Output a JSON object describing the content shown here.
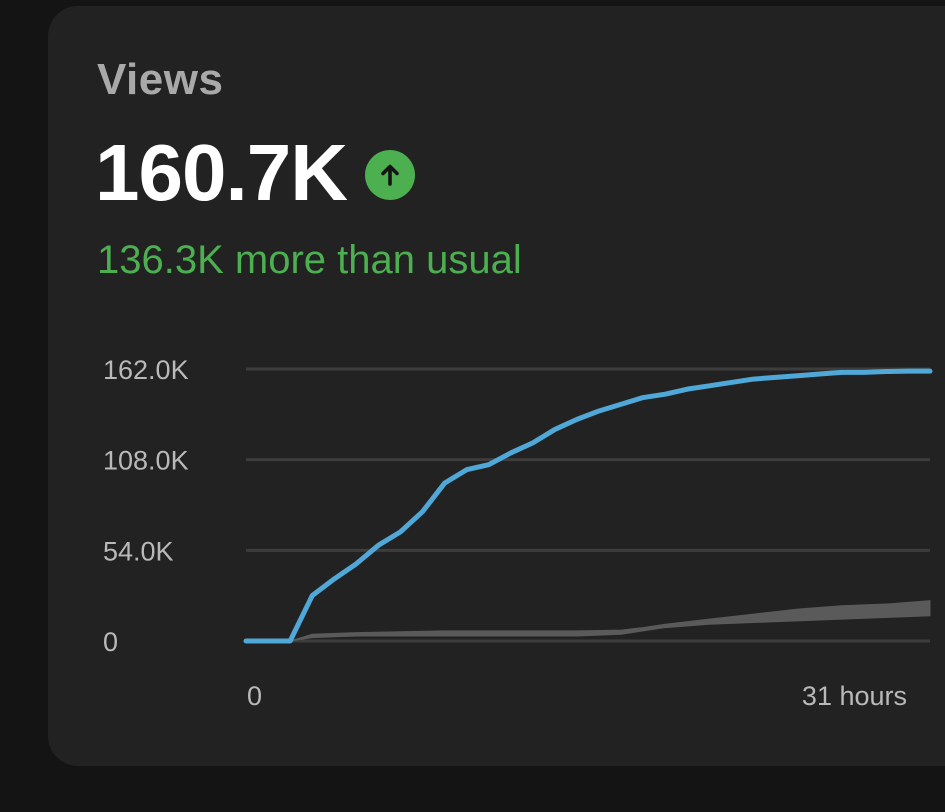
{
  "card": {
    "title": "Views",
    "value": "160.7K",
    "trend_icon": "arrow-up-icon",
    "comparison": "136.3K more than usual",
    "colors": {
      "current_line": "#4fa8d8",
      "typical_band": "#5a5a5a",
      "positive": "#4caf50"
    }
  },
  "chart_data": {
    "type": "line",
    "xlim": [
      0,
      31
    ],
    "ylim": [
      0,
      162000
    ],
    "y_ticks": [
      "162.0K",
      "108.0K",
      "54.0K",
      "0"
    ],
    "y_tick_values": [
      162000,
      108000,
      54000,
      0
    ],
    "x_ticks": [
      "0",
      "31 hours"
    ],
    "x_tick_values": [
      0,
      31
    ],
    "grid": true,
    "series": [
      {
        "role": "current",
        "x": [
          0,
          1,
          2,
          3,
          4,
          5,
          6,
          7,
          8,
          9,
          10,
          11,
          12,
          13,
          14,
          15,
          16,
          17,
          18,
          19,
          20,
          21,
          22,
          23,
          24,
          25,
          26,
          27,
          28,
          29,
          30,
          31
        ],
        "values": [
          0,
          0,
          0,
          27000,
          37000,
          46000,
          57000,
          65000,
          77000,
          94000,
          102000,
          105000,
          112000,
          118000,
          126000,
          132000,
          137000,
          141000,
          145000,
          147000,
          150000,
          152000,
          154000,
          156000,
          157000,
          158000,
          159000,
          160000,
          160000,
          160500,
          160700,
          160700
        ]
      },
      {
        "role": "typical-range",
        "x": [
          0,
          2,
          3,
          5,
          7,
          9,
          11,
          13,
          15,
          17,
          18,
          19,
          21,
          23,
          25,
          27,
          29,
          31
        ],
        "low": [
          0,
          0,
          2000,
          3000,
          3000,
          3000,
          3000,
          3000,
          3000,
          4000,
          6000,
          8000,
          10000,
          11000,
          12000,
          13000,
          14000,
          15000
        ],
        "high": [
          0,
          0,
          4000,
          5000,
          5500,
          6000,
          6000,
          6000,
          6000,
          6500,
          8000,
          10000,
          13000,
          16000,
          19000,
          21000,
          22000,
          24000
        ]
      }
    ]
  }
}
